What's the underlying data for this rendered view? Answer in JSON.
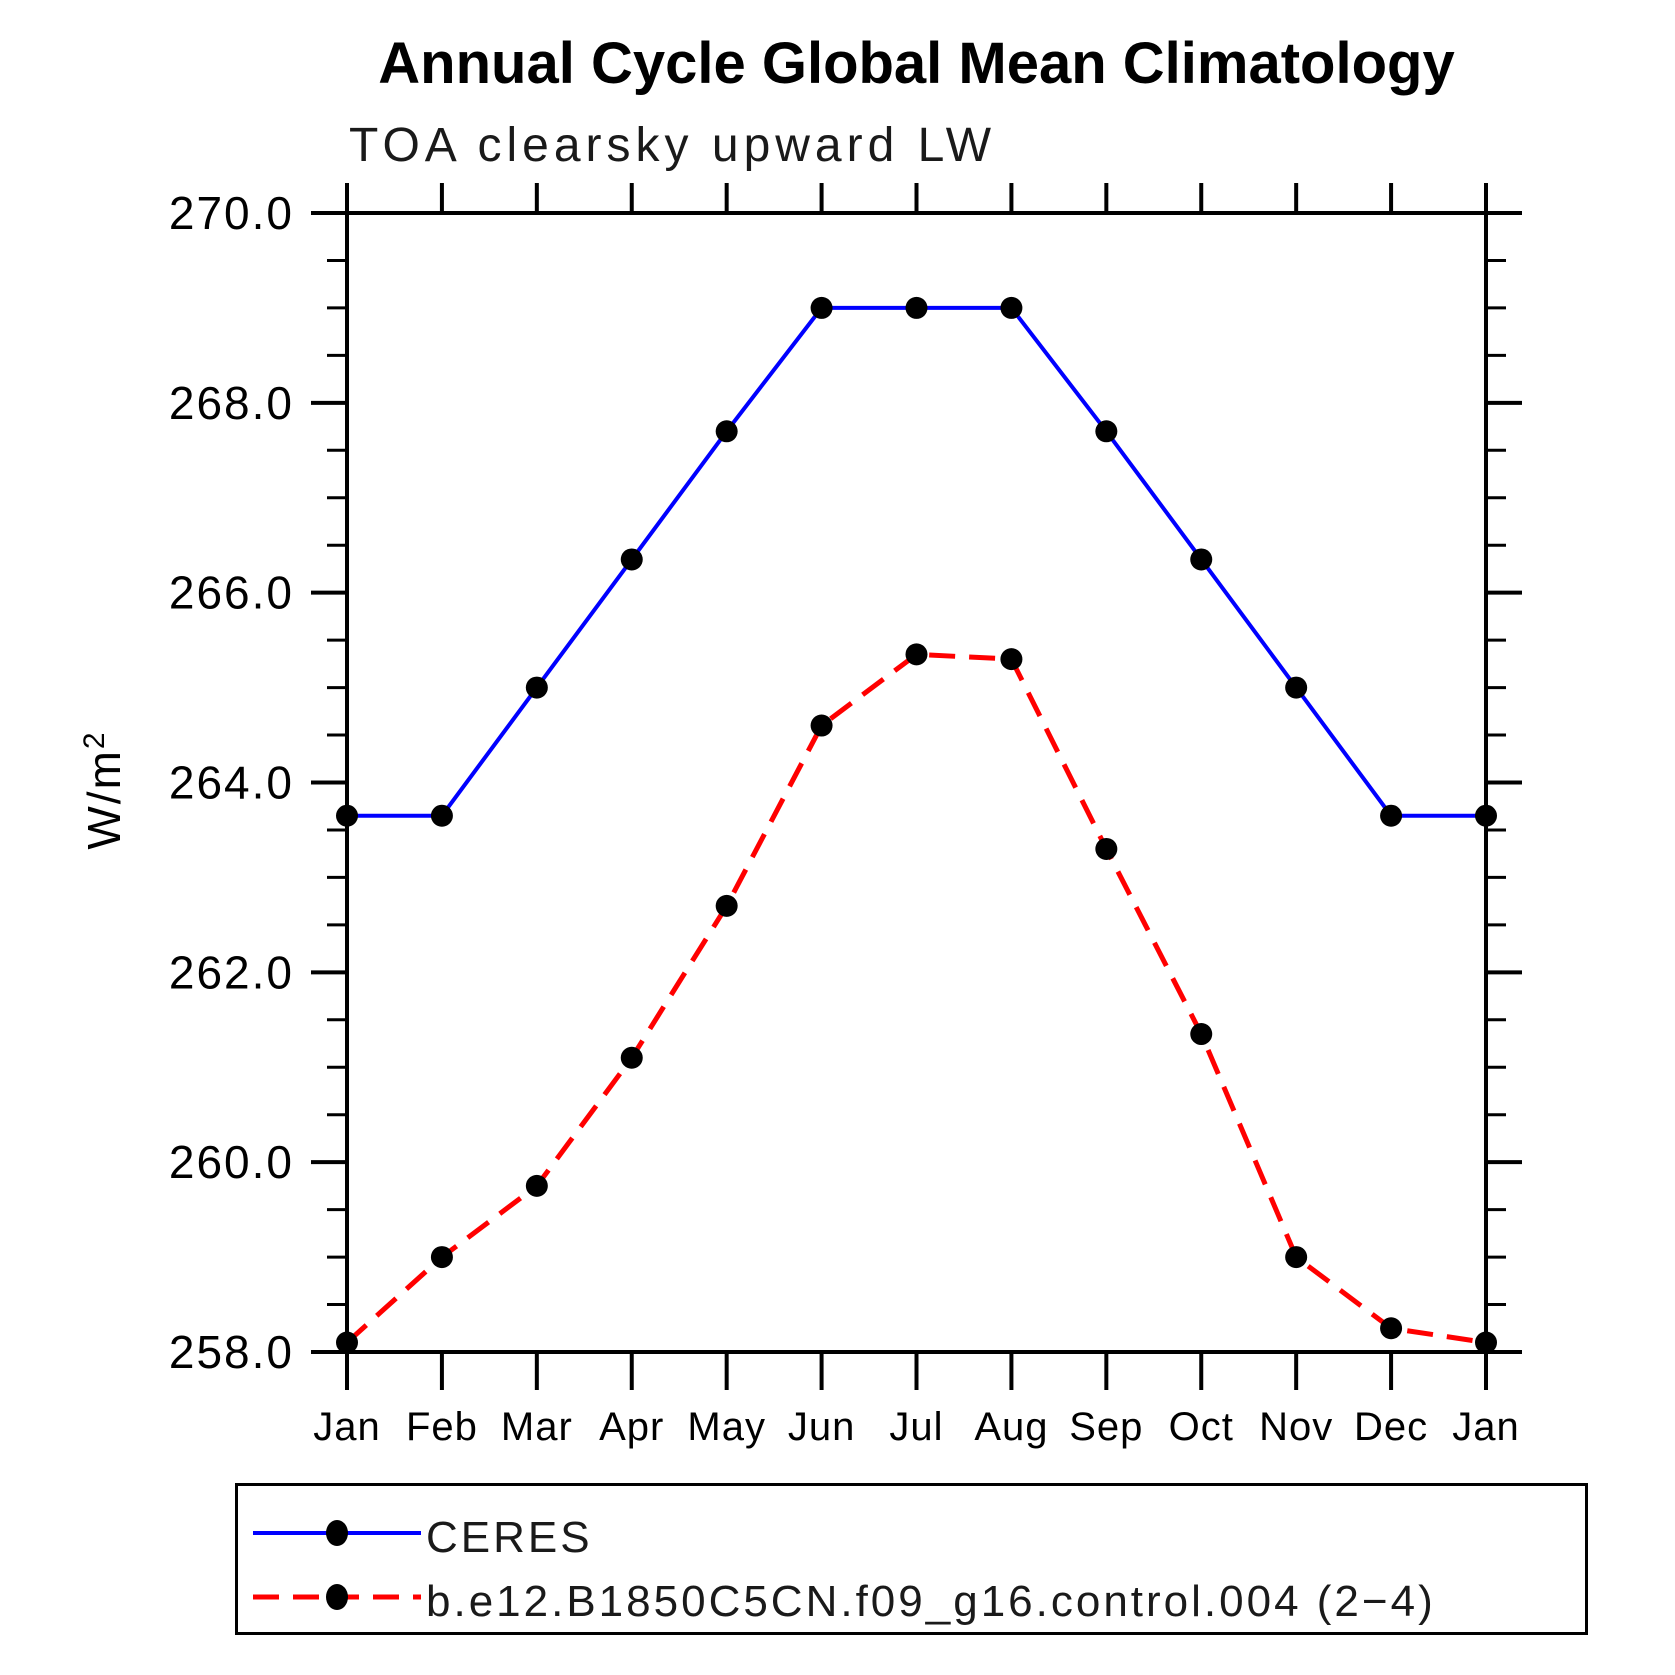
{
  "page": {
    "background": "#ffffff"
  },
  "chart_data": {
    "type": "line",
    "title": "Annual Cycle Global Mean Climatology",
    "subtitle": "TOA clearsky upward LW",
    "ylabel": "W/m²",
    "xlabel": "",
    "ylim": [
      258.0,
      270.0
    ],
    "y_minor_step": 0.5,
    "grid": "off",
    "legend_position": "bottom",
    "axis_color": "#000000",
    "y_ticks": [
      {
        "value": 270.0,
        "label": "270.0"
      },
      {
        "value": 268.0,
        "label": "268.0"
      },
      {
        "value": 266.0,
        "label": "266.0"
      },
      {
        "value": 264.0,
        "label": "264.0"
      },
      {
        "value": 262.0,
        "label": "262.0"
      },
      {
        "value": 260.0,
        "label": "260.0"
      },
      {
        "value": 258.0,
        "label": "258.0"
      }
    ],
    "x_tick_labels": [
      "Jan",
      "Feb",
      "Mar",
      "Apr",
      "May",
      "Jun",
      "Jul",
      "Aug",
      "Sep",
      "Oct",
      "Nov",
      "Dec",
      "Jan"
    ],
    "series": [
      {
        "name": "CERES",
        "color": "#0000ff",
        "style": "solid",
        "marker_color": "#000000",
        "values": [
          263.65,
          263.65,
          265.0,
          266.35,
          267.7,
          269.0,
          269.0,
          269.0,
          267.7,
          266.35,
          265.0,
          263.65,
          263.65
        ]
      },
      {
        "name": "b.e12.B1850C5CN.f09_g16.control.004 (2−4)",
        "color": "#ff0000",
        "style": "dashed",
        "marker_color": "#000000",
        "values": [
          258.1,
          259.0,
          259.75,
          261.1,
          262.7,
          264.6,
          265.35,
          265.3,
          263.3,
          261.35,
          259.0,
          258.25,
          258.1
        ]
      }
    ]
  }
}
